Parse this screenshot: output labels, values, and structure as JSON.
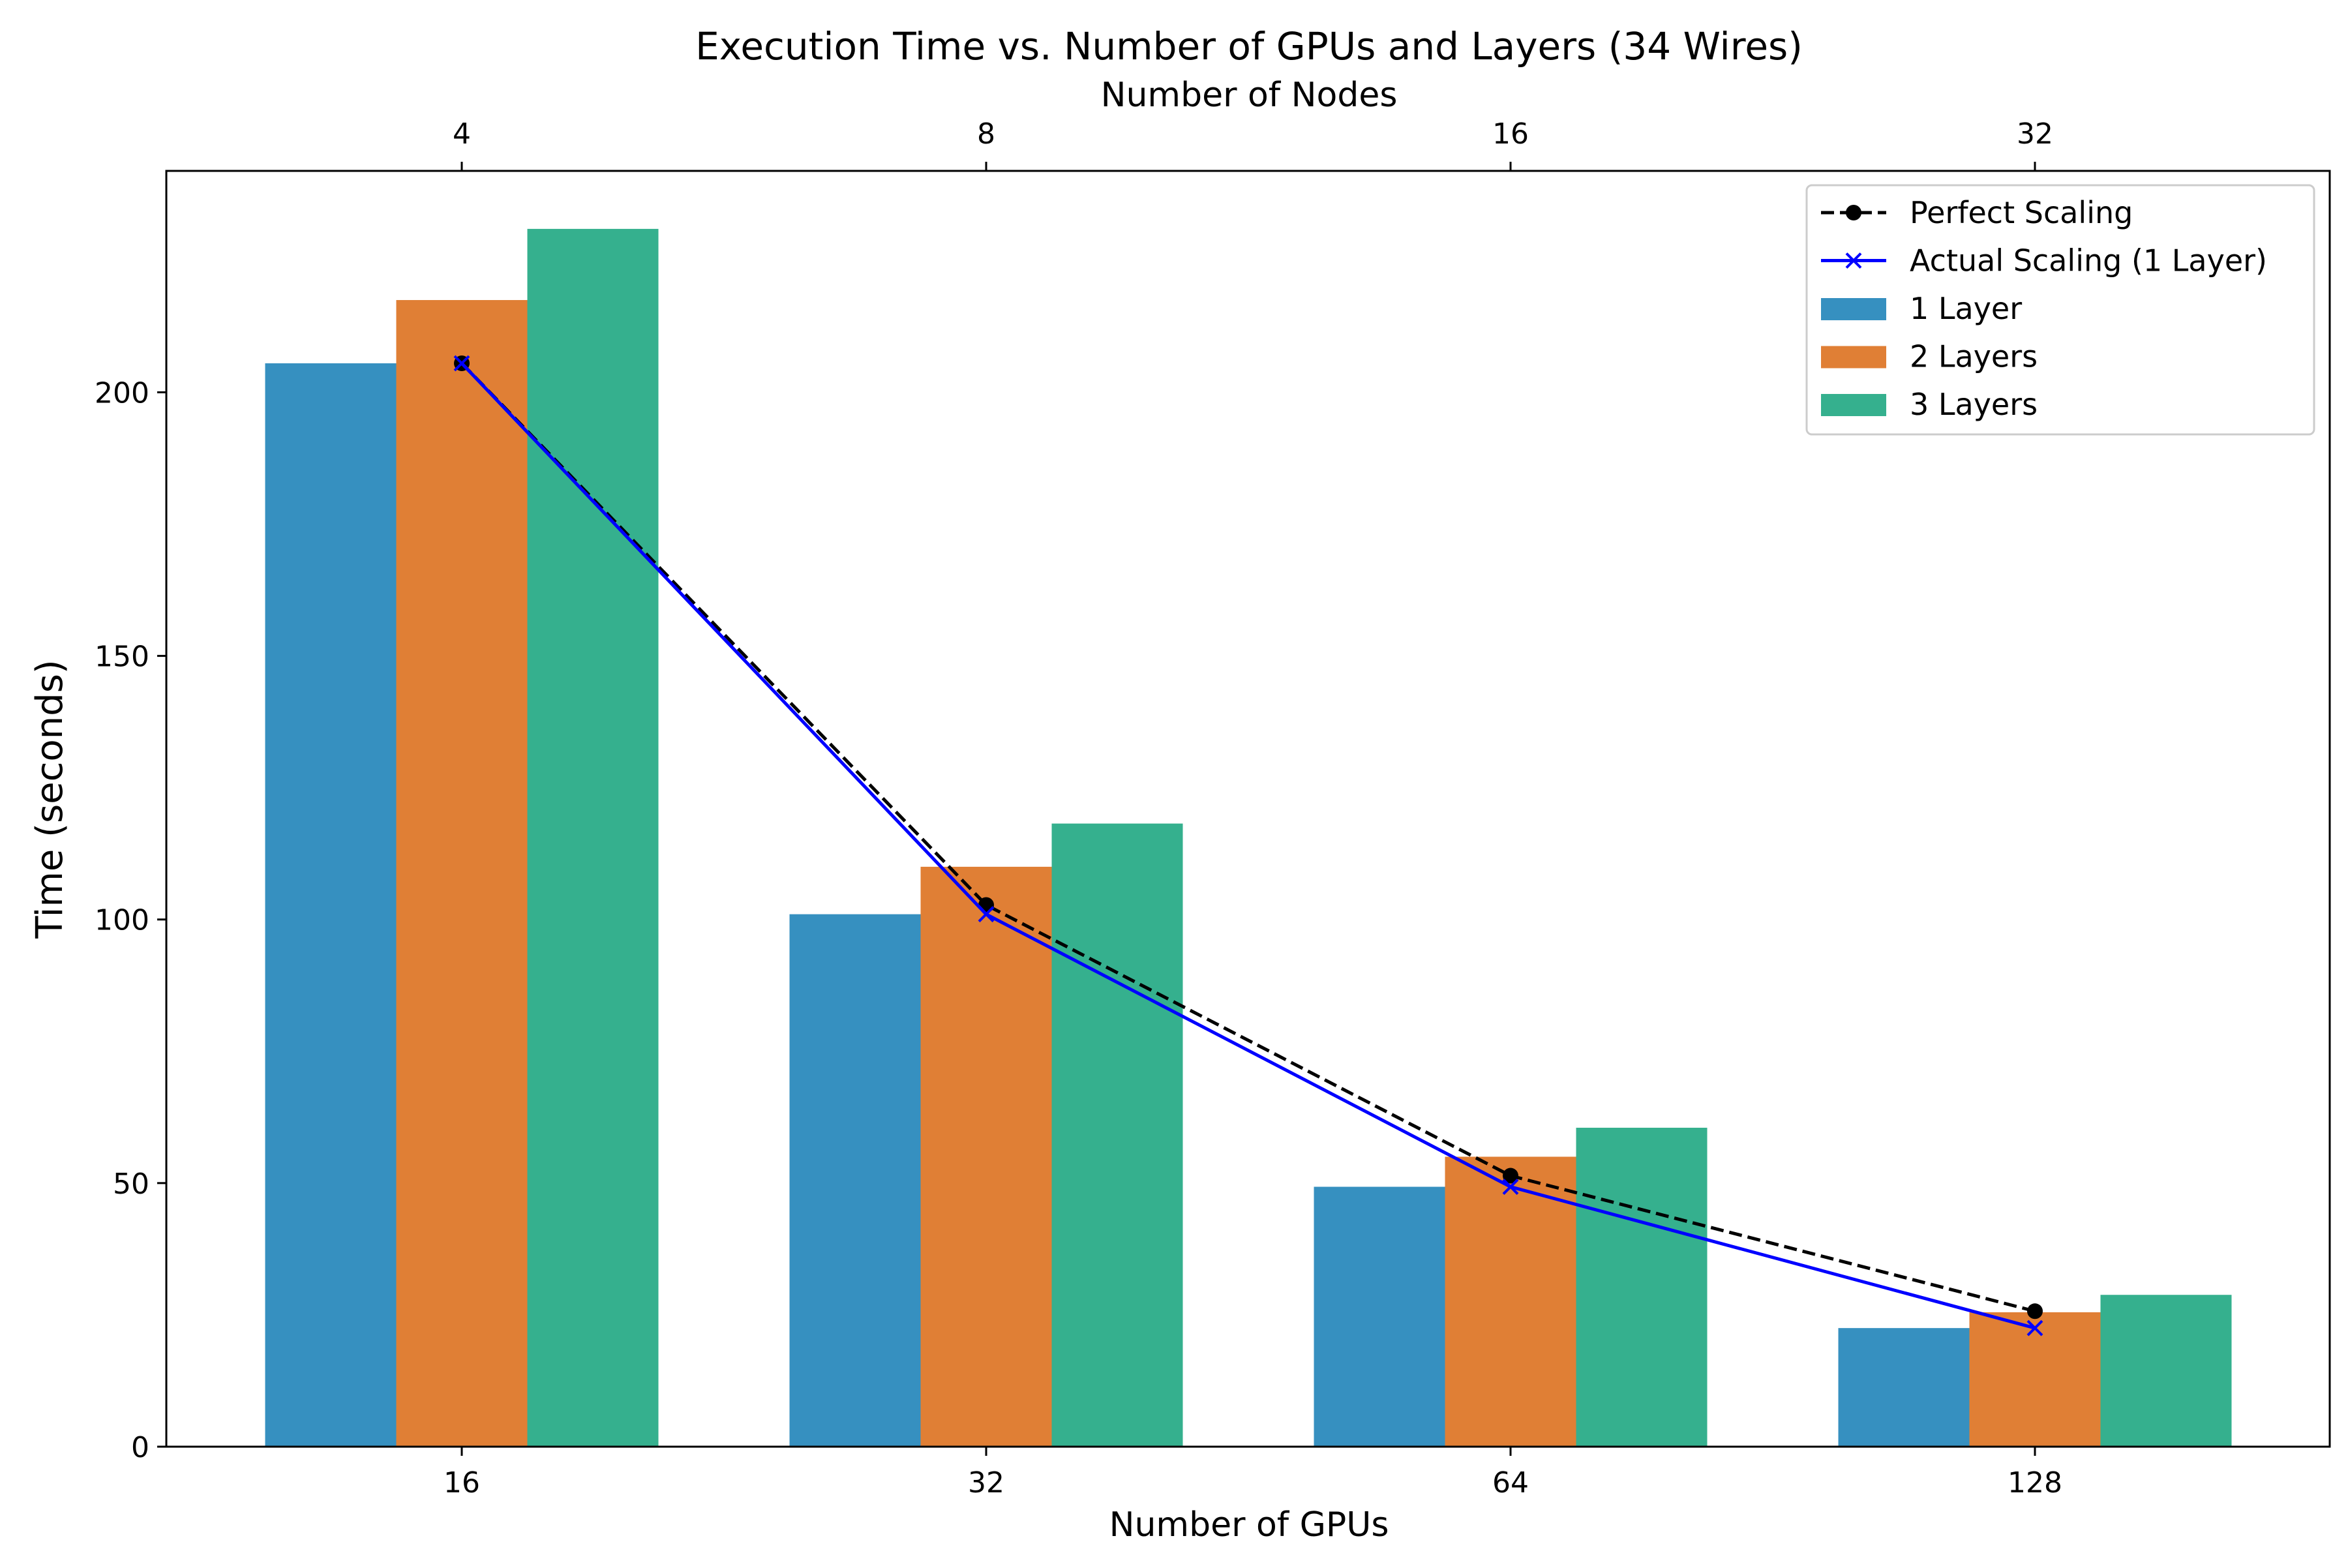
{
  "chart_data": {
    "type": "bar",
    "title": "Execution Time vs. Number of GPUs and Layers (34 Wires)",
    "xlabel": "Number of GPUs",
    "ylabel": "Time (seconds)",
    "top_xlabel": "Number of Nodes",
    "categories": [
      "16",
      "32",
      "64",
      "128"
    ],
    "top_categories": [
      "4",
      "8",
      "16",
      "32"
    ],
    "yticks": [
      "0",
      "50",
      "100",
      "150",
      "200"
    ],
    "ylim": [
      0,
      242
    ],
    "grid": false,
    "legend_position": "top-right",
    "series": [
      {
        "name": "1 Layer",
        "type": "bar",
        "color": "#3690c0",
        "values": [
          205.5,
          101.0,
          49.3,
          22.5
        ]
      },
      {
        "name": "2 Layers",
        "type": "bar",
        "color": "#e07f35",
        "values": [
          217.5,
          110.0,
          55.0,
          25.5
        ]
      },
      {
        "name": "3 Layers",
        "type": "bar",
        "color": "#35b08e",
        "values": [
          231.0,
          118.2,
          60.5,
          28.8
        ]
      },
      {
        "name": "Perfect Scaling",
        "type": "line",
        "style": "dashed",
        "marker": "circle",
        "color": "#000000",
        "values": [
          205.5,
          102.75,
          51.4,
          25.7
        ]
      },
      {
        "name": "Actual Scaling (1 Layer)",
        "type": "line",
        "style": "solid",
        "marker": "x",
        "color": "#0000ff",
        "values": [
          205.5,
          101.0,
          49.3,
          22.5
        ]
      }
    ],
    "legend_order": [
      "Perfect Scaling",
      "Actual Scaling (1 Layer)",
      "1 Layer",
      "2 Layers",
      "3 Layers"
    ]
  }
}
